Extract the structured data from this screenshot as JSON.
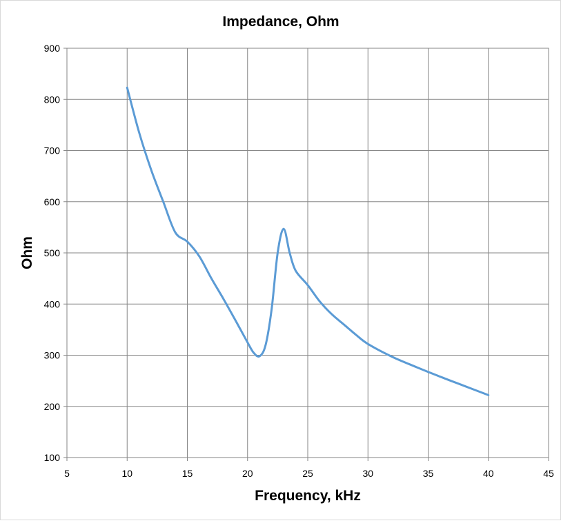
{
  "chart_data": {
    "type": "line",
    "title": "Impedance, Ohm",
    "xlabel": "Frequency, kHz",
    "ylabel": "Ohm",
    "xlim": [
      5,
      45
    ],
    "ylim": [
      100,
      900
    ],
    "xticks": [
      5,
      10,
      15,
      20,
      25,
      30,
      35,
      40,
      45
    ],
    "yticks": [
      100,
      200,
      300,
      400,
      500,
      600,
      700,
      800,
      900
    ],
    "grid": true,
    "line_color": "#5B9BD5",
    "series": [
      {
        "x": [
          10,
          11,
          12,
          13,
          14,
          15,
          16,
          17,
          18,
          19,
          20,
          20.5,
          21,
          21.5,
          22,
          22.5,
          23,
          23.5,
          24,
          25,
          26,
          27,
          28,
          29,
          30,
          32,
          34,
          36,
          38,
          40
        ],
        "y": [
          823,
          735,
          662,
          600,
          540,
          522,
          493,
          450,
          410,
          368,
          325,
          305,
          298,
          320,
          390,
          500,
          547,
          500,
          465,
          437,
          405,
          380,
          360,
          340,
          322,
          297,
          277,
          258,
          240,
          222
        ]
      }
    ]
  }
}
